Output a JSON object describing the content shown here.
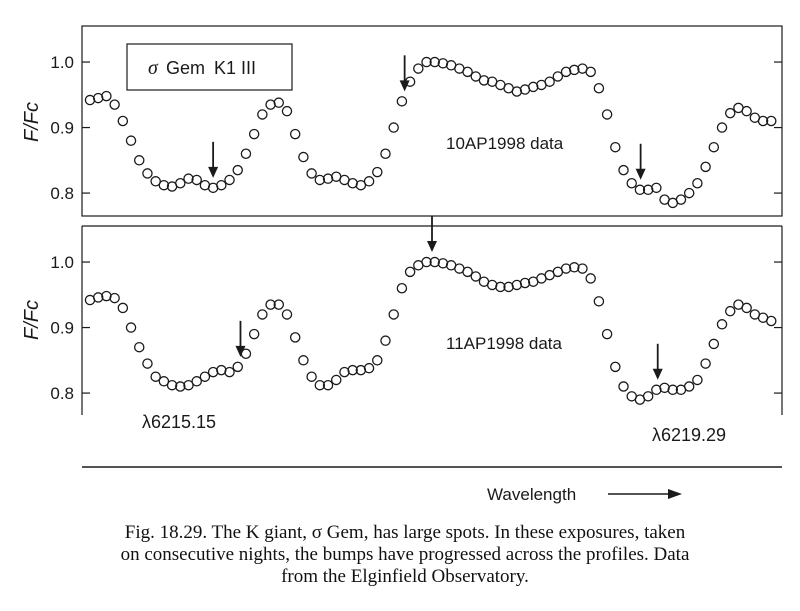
{
  "chart_data": [
    {
      "type": "scatter",
      "panel": "top",
      "ylabel": "F/Fc",
      "ylim": [
        0.765,
        1.055
      ],
      "yticks": [
        0.8,
        0.9,
        1.0
      ],
      "tick_labels": [
        "0.8",
        "0.9",
        "1.0"
      ],
      "xlim": [
        0,
        1
      ],
      "legend": {
        "star": "σ",
        "name": "Gem",
        "spectral_type": "K1 III"
      },
      "annotation": "10AP1998  data",
      "arrows_x": [
        0.18,
        0.46,
        0.805
      ],
      "series": [
        {
          "x": [
            0,
            0.012,
            0.024,
            0.036,
            0.048,
            0.06,
            0.072,
            0.084,
            0.096,
            0.108,
            0.12,
            0.132,
            0.144,
            0.156,
            0.168,
            0.18,
            0.192,
            0.204,
            0.216,
            0.228,
            0.24,
            0.252,
            0.264,
            0.276,
            0.288,
            0.3,
            0.312,
            0.324,
            0.336,
            0.348,
            0.36,
            0.372,
            0.384,
            0.396,
            0.408,
            0.42,
            0.432,
            0.444,
            0.456,
            0.468,
            0.48,
            0.492,
            0.504,
            0.516,
            0.528,
            0.54,
            0.552,
            0.564,
            0.576,
            0.588,
            0.6,
            0.612,
            0.624,
            0.636,
            0.648,
            0.66,
            0.672,
            0.684,
            0.696,
            0.708,
            0.72,
            0.732,
            0.744,
            0.756,
            0.768,
            0.78,
            0.792,
            0.804,
            0.816,
            0.828,
            0.84,
            0.852,
            0.864,
            0.876,
            0.888,
            0.9,
            0.912,
            0.924,
            0.936,
            0.948,
            0.96,
            0.972,
            0.984,
            0.996
          ],
          "y": [
            0.942,
            0.945,
            0.948,
            0.935,
            0.91,
            0.88,
            0.85,
            0.83,
            0.818,
            0.812,
            0.81,
            0.815,
            0.822,
            0.82,
            0.812,
            0.808,
            0.812,
            0.82,
            0.835,
            0.86,
            0.89,
            0.92,
            0.935,
            0.938,
            0.925,
            0.89,
            0.855,
            0.83,
            0.82,
            0.822,
            0.825,
            0.82,
            0.815,
            0.812,
            0.818,
            0.832,
            0.86,
            0.9,
            0.94,
            0.97,
            0.99,
            1.0,
            1.0,
            0.998,
            0.995,
            0.99,
            0.985,
            0.978,
            0.972,
            0.97,
            0.965,
            0.96,
            0.955,
            0.958,
            0.962,
            0.965,
            0.97,
            0.978,
            0.985,
            0.988,
            0.99,
            0.985,
            0.96,
            0.92,
            0.87,
            0.835,
            0.815,
            0.805,
            0.805,
            0.808,
            0.79,
            0.785,
            0.79,
            0.8,
            0.815,
            0.84,
            0.87,
            0.9,
            0.922,
            0.93,
            0.925,
            0.915,
            0.91,
            0.91
          ]
        }
      ]
    },
    {
      "type": "scatter",
      "panel": "bottom",
      "ylabel": "F/Fc",
      "ylim": [
        0.765,
        1.055
      ],
      "yticks": [
        0.8,
        0.9,
        1.0
      ],
      "tick_labels": [
        "0.8",
        "0.9",
        "1.0"
      ],
      "xlim": [
        0,
        1
      ],
      "annotation": "11AP1998 data",
      "arrows_x": [
        0.22,
        0.5,
        0.83
      ],
      "line_labels": [
        "λ6215.15",
        "λ6219.29"
      ],
      "xlabel": "Wavelength",
      "series": [
        {
          "x": [
            0,
            0.012,
            0.024,
            0.036,
            0.048,
            0.06,
            0.072,
            0.084,
            0.096,
            0.108,
            0.12,
            0.132,
            0.144,
            0.156,
            0.168,
            0.18,
            0.192,
            0.204,
            0.216,
            0.228,
            0.24,
            0.252,
            0.264,
            0.276,
            0.288,
            0.3,
            0.312,
            0.324,
            0.336,
            0.348,
            0.36,
            0.372,
            0.384,
            0.396,
            0.408,
            0.42,
            0.432,
            0.444,
            0.456,
            0.468,
            0.48,
            0.492,
            0.504,
            0.516,
            0.528,
            0.54,
            0.552,
            0.564,
            0.576,
            0.588,
            0.6,
            0.612,
            0.624,
            0.636,
            0.648,
            0.66,
            0.672,
            0.684,
            0.696,
            0.708,
            0.72,
            0.732,
            0.744,
            0.756,
            0.768,
            0.78,
            0.792,
            0.804,
            0.816,
            0.828,
            0.84,
            0.852,
            0.864,
            0.876,
            0.888,
            0.9,
            0.912,
            0.924,
            0.936,
            0.948,
            0.96,
            0.972,
            0.984,
            0.996
          ],
          "y": [
            0.942,
            0.946,
            0.948,
            0.945,
            0.93,
            0.9,
            0.87,
            0.845,
            0.825,
            0.818,
            0.812,
            0.81,
            0.812,
            0.818,
            0.825,
            0.832,
            0.835,
            0.832,
            0.84,
            0.86,
            0.89,
            0.92,
            0.935,
            0.935,
            0.92,
            0.885,
            0.85,
            0.825,
            0.812,
            0.812,
            0.82,
            0.832,
            0.835,
            0.835,
            0.838,
            0.85,
            0.88,
            0.92,
            0.96,
            0.985,
            0.995,
            1.0,
            1.0,
            0.998,
            0.995,
            0.99,
            0.985,
            0.978,
            0.97,
            0.965,
            0.962,
            0.962,
            0.965,
            0.968,
            0.97,
            0.975,
            0.98,
            0.985,
            0.99,
            0.992,
            0.99,
            0.975,
            0.94,
            0.89,
            0.84,
            0.81,
            0.795,
            0.79,
            0.795,
            0.805,
            0.808,
            0.805,
            0.805,
            0.81,
            0.82,
            0.845,
            0.875,
            0.905,
            0.925,
            0.935,
            0.93,
            0.92,
            0.915,
            0.91
          ]
        }
      ]
    }
  ],
  "caption": {
    "lines": [
      "Fig. 18.29.    The K giant, σ Gem, has large spots. In these exposures, taken",
      "on consecutive nights, the bumps have progressed across the profiles. Data",
      "from the Elginfield Observatory."
    ]
  },
  "colors": {
    "ink": "#1a1a1a",
    "background": "#ffffff"
  }
}
